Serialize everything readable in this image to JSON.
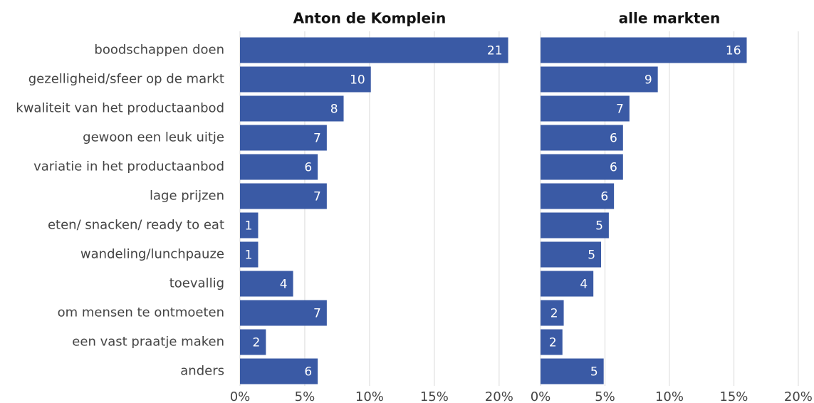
{
  "chart_data": [
    {
      "type": "barh",
      "title": "Anton de Komplein",
      "categories": [
        "boodschappen doen",
        "gezelligheid/sfeer op de markt",
        "kwaliteit van het productaanbod",
        "gewoon een leuk uitje",
        "variatie in het productaanbod",
        "lage prijzen",
        "eten/ snacken/ ready to eat",
        "wandeling/lunchpauze",
        "toevallig",
        "om mensen te ontmoeten",
        "een vast praatje maken",
        "anders"
      ],
      "values": [
        20.7,
        10.1,
        8.0,
        6.7,
        6.0,
        6.7,
        1.4,
        1.4,
        4.1,
        6.7,
        2.0,
        6.0
      ],
      "value_labels": [
        "21",
        "10",
        "8",
        "7",
        "6",
        "7",
        "1",
        "1",
        "4",
        "7",
        "2",
        "6"
      ],
      "color": "#3a5aa5",
      "xlim": [
        0,
        21
      ],
      "grid": true,
      "xticks": [
        {
          "value": 0,
          "label": "0%"
        },
        {
          "value": 5,
          "label": "5%"
        },
        {
          "value": 10,
          "label": "10%"
        },
        {
          "value": 15,
          "label": "15%"
        },
        {
          "value": 20,
          "label": "20%"
        }
      ]
    },
    {
      "type": "barh",
      "title": "alle markten",
      "values": [
        16.0,
        9.1,
        6.9,
        6.4,
        6.4,
        5.7,
        5.3,
        4.7,
        4.1,
        1.8,
        1.7,
        4.9
      ],
      "value_labels": [
        "16",
        "9",
        "7",
        "6",
        "6",
        "6",
        "5",
        "5",
        "4",
        "2",
        "2",
        "5"
      ],
      "color": "#3a5aa5",
      "xlim": [
        0,
        21
      ],
      "grid": true,
      "xticks": [
        {
          "value": 0,
          "label": "0%"
        },
        {
          "value": 5,
          "label": "5%"
        },
        {
          "value": 10,
          "label": "10%"
        },
        {
          "value": 15,
          "label": "15%"
        },
        {
          "value": 20,
          "label": "20%"
        }
      ]
    }
  ]
}
